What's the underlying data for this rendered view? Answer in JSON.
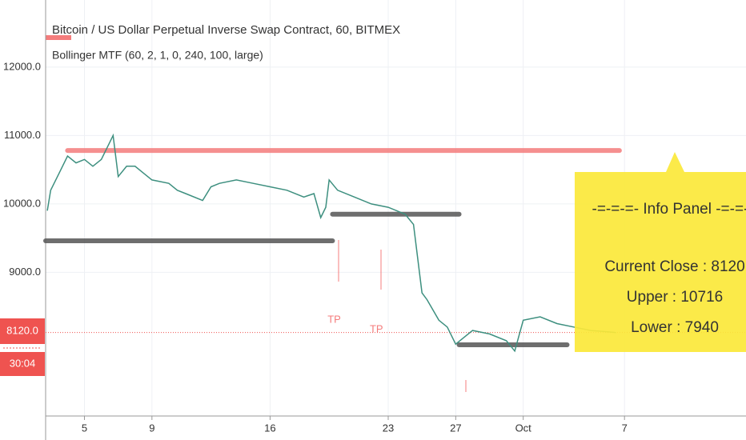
{
  "chart_data": {
    "type": "line",
    "title": "Bitcoin / US Dollar Perpetual Inverse Swap Contract, 60, BITMEX",
    "subtitle": "Bollinger MTF (60, 2, 1, 0, 240, 100, large)",
    "xlim": [
      2.7,
      44.2
    ],
    "xticks": [
      5,
      9,
      16,
      23,
      27,
      {
        "value": 31,
        "label": "Oct"
      },
      {
        "value": 37,
        "label": "7"
      }
    ],
    "ylim": [
      6900,
      12980
    ],
    "yticks": [
      {
        "value": 12000,
        "label": "12000.0"
      },
      {
        "value": 11000,
        "label": "11000.0"
      },
      {
        "value": 10000,
        "label": "10000.0"
      },
      {
        "value": 9000,
        "label": "9000.0"
      }
    ],
    "grid": true,
    "series": [
      {
        "color": "#3d8f7f",
        "x": [
          2.8,
          3,
          3.5,
          4,
          4.5,
          5,
          5.5,
          6,
          6.5,
          6.7,
          7,
          7.5,
          8,
          8.5,
          9,
          10,
          10.5,
          11,
          12,
          12.5,
          13,
          14,
          15,
          16,
          17,
          18,
          18.6,
          19,
          19.3,
          19.5,
          20,
          21,
          22,
          23,
          24,
          24.5,
          25,
          25.3,
          26,
          26.5,
          27,
          27.5,
          28,
          29,
          30,
          30.5,
          31,
          32,
          33,
          34,
          35,
          36,
          36.5
        ],
        "values": [
          9900,
          10200,
          10450,
          10700,
          10600,
          10650,
          10550,
          10650,
          10900,
          11000,
          10400,
          10550,
          10550,
          10450,
          10350,
          10300,
          10200,
          10150,
          10050,
          10250,
          10300,
          10350,
          10300,
          10250,
          10200,
          10100,
          10150,
          9800,
          9950,
          10350,
          10200,
          10100,
          10000,
          9950,
          9850,
          9700,
          8700,
          8600,
          8300,
          8200,
          7950,
          8050,
          8150,
          8100,
          8000,
          7850,
          8300,
          8350,
          8250,
          8200,
          8150,
          8130,
          8120
        ]
      }
    ],
    "levels": [
      {
        "x": [
          4.0,
          36.7
        ],
        "value": 10780,
        "color": "#f47c7c"
      },
      {
        "x": [
          2.7,
          19.7
        ],
        "value": 9460,
        "color": "#555555"
      },
      {
        "x": [
          19.7,
          27.2
        ],
        "value": 9850,
        "color": "#555555"
      },
      {
        "x": [
          27.2,
          33.6
        ],
        "value": 7940,
        "color": "#555555"
      }
    ],
    "last_price": {
      "value": 8120,
      "label": "8120.0"
    },
    "countdown": "30:04",
    "annotations": [
      {
        "text": "TP",
        "x": 19.8,
        "value": 8300
      },
      {
        "text": "TP",
        "x": 22.3,
        "value": 8160
      }
    ],
    "info_panel": {
      "title": "-=-=-=- Info Panel -=-=-=",
      "lines": [
        "Current Close : 8120",
        "Upper : 10716",
        "Lower : 7940"
      ]
    }
  }
}
